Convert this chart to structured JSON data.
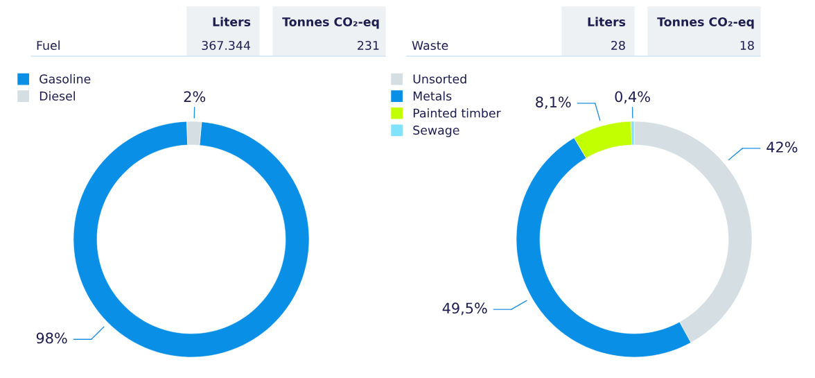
{
  "chart_data": [
    {
      "type": "donut",
      "categories": [
        "Gasoline",
        "Diesel"
      ],
      "values": [
        98,
        2
      ],
      "colors": [
        "#0a8fe6",
        "#d5dfe3"
      ],
      "value_labels": [
        "98%",
        "2%"
      ],
      "legend": "top left",
      "annotations": [
        "Liters",
        "Tonnes CO₂-eq",
        "Fuel",
        "367.344",
        "231"
      ]
    },
    {
      "type": "donut",
      "categories": [
        "Unsorted",
        "Metals",
        "Painted timber",
        "Sewage"
      ],
      "values": [
        42,
        49.5,
        8.1,
        0.4
      ],
      "colors": [
        "#d5dfe3",
        "#0a8fe6",
        "#c2ff00",
        "#80e2fb"
      ],
      "value_labels": [
        "42%",
        "49,5%",
        "8,1%",
        "0,4%"
      ],
      "legend": "top left",
      "annotations": [
        "Liters",
        "Tonnes CO₂-eq",
        "Waste",
        "28",
        "18"
      ]
    }
  ]
}
